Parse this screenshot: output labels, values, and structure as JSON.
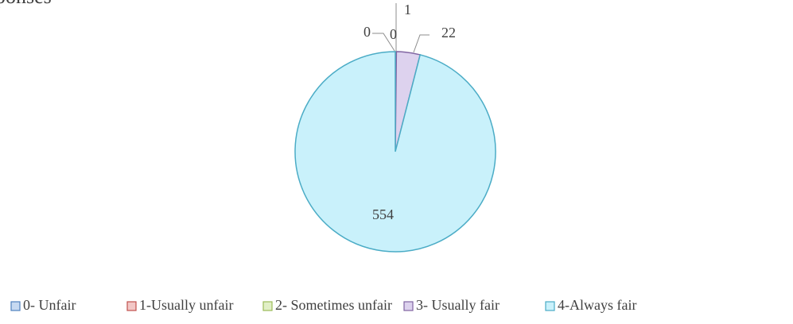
{
  "chart_data": {
    "type": "pie",
    "title": "ponses",
    "categories": [
      "0- Unfair",
      "1-Usually unfair",
      "2- Sometimes unfair",
      "3- Usually fair",
      "4-Always fair"
    ],
    "values": [
      0,
      0,
      1,
      22,
      554
    ],
    "colors": [
      "#c6d9f1",
      "#f2c7c6",
      "#e1efc6",
      "#ddd2ee",
      "#c9f1fb"
    ],
    "edge_colors": [
      "#4f81bd",
      "#c0504d",
      "#9bbb59",
      "#8064a2",
      "#4bacc6"
    ],
    "legend": "bottom"
  }
}
